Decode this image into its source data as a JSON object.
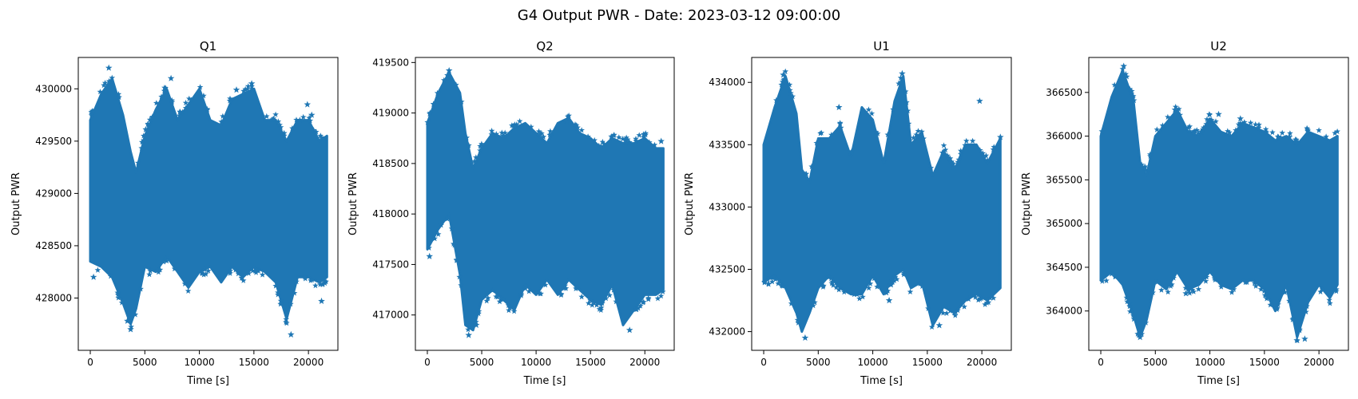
{
  "figure": {
    "suptitle": "G4 Output PWR - Date: 2023-03-12 09:00:00"
  },
  "colors": {
    "marker": "#1f77b4",
    "axes": "#000000",
    "background": "#ffffff"
  },
  "chart_data": [
    {
      "type": "scatter",
      "title": "Q1",
      "xlabel": "Time [s]",
      "ylabel": "Output PWR",
      "marker": "star",
      "xlim": [
        -1100,
        22700
      ],
      "ylim": [
        427500,
        430300
      ],
      "xticks": [
        0,
        5000,
        10000,
        15000,
        20000
      ],
      "yticks": [
        428000,
        428500,
        429000,
        429500,
        430000
      ],
      "grid": false,
      "band": {
        "x": [
          0,
          1000,
          2000,
          3000,
          3700,
          4200,
          5000,
          6000,
          7000,
          8000,
          9000,
          10000,
          11000,
          12000,
          13000,
          14000,
          15000,
          16000,
          17000,
          18000,
          19000,
          20000,
          21000,
          21700
        ],
        "upper": [
          429700,
          429950,
          430100,
          429750,
          429400,
          429200,
          429550,
          429800,
          430000,
          429700,
          429850,
          430000,
          429700,
          429650,
          429900,
          429950,
          430000,
          429700,
          429700,
          429500,
          429700,
          429700,
          429500,
          429550
        ],
        "lower": [
          428350,
          428300,
          428200,
          427950,
          427750,
          427900,
          428300,
          428250,
          428400,
          428250,
          428100,
          428250,
          428300,
          428150,
          428300,
          428200,
          428300,
          428250,
          428150,
          427800,
          428200,
          428200,
          428150,
          428200
        ]
      },
      "outliers": [
        {
          "x": 1700,
          "y": 430200
        },
        {
          "x": 3700,
          "y": 427700
        },
        {
          "x": 7400,
          "y": 430100
        },
        {
          "x": 13400,
          "y": 429990
        },
        {
          "x": 14800,
          "y": 430050
        },
        {
          "x": 18400,
          "y": 427650
        },
        {
          "x": 19900,
          "y": 429850
        },
        {
          "x": 20300,
          "y": 429750
        },
        {
          "x": 300,
          "y": 428200
        },
        {
          "x": 21200,
          "y": 427970
        },
        {
          "x": 3400,
          "y": 427780
        }
      ]
    },
    {
      "type": "scatter",
      "title": "Q2",
      "xlabel": "Time [s]",
      "ylabel": "Output PWR",
      "marker": "star",
      "xlim": [
        -1100,
        22700
      ],
      "ylim": [
        416650,
        419550
      ],
      "xticks": [
        0,
        5000,
        10000,
        15000,
        20000
      ],
      "yticks": [
        417000,
        417500,
        418000,
        418500,
        419000,
        419500
      ],
      "grid": false,
      "band": {
        "x": [
          0,
          1000,
          2000,
          3000,
          3500,
          4200,
          5000,
          6000,
          7000,
          8000,
          9000,
          10000,
          11000,
          12000,
          13000,
          14000,
          15000,
          16000,
          17000,
          18000,
          19000,
          20000,
          21000,
          21700
        ],
        "upper": [
          418900,
          419200,
          419400,
          419200,
          418800,
          418450,
          418650,
          418800,
          418750,
          418850,
          418900,
          418800,
          418700,
          418900,
          418950,
          418800,
          418750,
          418650,
          418750,
          418700,
          418700,
          418750,
          418650,
          418650
        ],
        "lower": [
          417650,
          417850,
          418000,
          417400,
          416900,
          416850,
          417150,
          417250,
          417150,
          417050,
          417300,
          417200,
          417350,
          417200,
          417350,
          417250,
          417150,
          417100,
          417300,
          416900,
          417050,
          417200,
          417200,
          417250
        ]
      },
      "outliers": [
        {
          "x": 2000,
          "y": 419420
        },
        {
          "x": 3800,
          "y": 416800
        },
        {
          "x": 12800,
          "y": 418920
        },
        {
          "x": 18600,
          "y": 416850
        },
        {
          "x": 21500,
          "y": 418720
        },
        {
          "x": 200,
          "y": 417580
        },
        {
          "x": 4500,
          "y": 416900
        }
      ]
    },
    {
      "type": "scatter",
      "title": "U1",
      "xlabel": "Time [s]",
      "ylabel": "Output PWR",
      "marker": "star",
      "xlim": [
        -1100,
        22700
      ],
      "ylim": [
        431850,
        434200
      ],
      "xticks": [
        0,
        5000,
        10000,
        15000,
        20000
      ],
      "yticks": [
        432000,
        432500,
        433000,
        433500,
        434000
      ],
      "grid": false,
      "band": {
        "x": [
          0,
          1000,
          2000,
          3000,
          3500,
          4200,
          5000,
          6000,
          7000,
          8000,
          9000,
          10000,
          11000,
          12000,
          12800,
          13500,
          14500,
          15500,
          16500,
          17500,
          18500,
          19500,
          20500,
          21700
        ],
        "upper": [
          433500,
          433800,
          434050,
          433750,
          433300,
          433200,
          433550,
          433550,
          433650,
          433400,
          433800,
          433700,
          433350,
          433850,
          434050,
          433500,
          433600,
          433250,
          433450,
          433300,
          433500,
          433500,
          433350,
          433550
        ],
        "lower": [
          432400,
          432450,
          432350,
          432150,
          432000,
          432150,
          432350,
          432450,
          432350,
          432300,
          432300,
          432450,
          432300,
          432450,
          432500,
          432350,
          432400,
          432050,
          432200,
          432150,
          432250,
          432300,
          432250,
          432350
        ]
      },
      "outliers": [
        {
          "x": 1800,
          "y": 434060
        },
        {
          "x": 3800,
          "y": 431950
        },
        {
          "x": 12700,
          "y": 434070
        },
        {
          "x": 6900,
          "y": 433800
        },
        {
          "x": 19800,
          "y": 433850
        },
        {
          "x": 16100,
          "y": 432050
        },
        {
          "x": 11500,
          "y": 432250
        },
        {
          "x": 21700,
          "y": 433560
        }
      ]
    },
    {
      "type": "scatter",
      "title": "U2",
      "xlabel": "Time [s]",
      "ylabel": "Output PWR",
      "marker": "star",
      "xlim": [
        -1100,
        22700
      ],
      "ylim": [
        363550,
        366900
      ],
      "xticks": [
        0,
        5000,
        10000,
        15000,
        20000
      ],
      "yticks": [
        364000,
        364500,
        365000,
        365500,
        366000,
        366500
      ],
      "grid": false,
      "band": {
        "x": [
          0,
          1000,
          2000,
          3000,
          3600,
          4200,
          5000,
          6000,
          7000,
          8000,
          9000,
          10000,
          11000,
          12000,
          13000,
          14000,
          15000,
          16000,
          17000,
          18000,
          19000,
          20000,
          21000,
          21700
        ],
        "upper": [
          366000,
          366450,
          366750,
          366400,
          365700,
          365550,
          366000,
          366150,
          366300,
          366050,
          366000,
          366200,
          366050,
          366000,
          366150,
          366100,
          366050,
          365950,
          366000,
          365900,
          366050,
          366000,
          365950,
          366000
        ],
        "lower": [
          364350,
          364450,
          364300,
          363950,
          363700,
          363900,
          364350,
          364250,
          364450,
          364250,
          364300,
          364450,
          364300,
          364250,
          364350,
          364350,
          364250,
          364000,
          364300,
          363700,
          364100,
          364300,
          364150,
          364300
        ]
      },
      "outliers": [
        {
          "x": 2100,
          "y": 366800
        },
        {
          "x": 3600,
          "y": 363700
        },
        {
          "x": 6800,
          "y": 366300
        },
        {
          "x": 9200,
          "y": 366050
        },
        {
          "x": 10800,
          "y": 366250
        },
        {
          "x": 12800,
          "y": 366200
        },
        {
          "x": 17300,
          "y": 365990
        },
        {
          "x": 18700,
          "y": 363680
        },
        {
          "x": 7800,
          "y": 364200
        }
      ]
    }
  ]
}
